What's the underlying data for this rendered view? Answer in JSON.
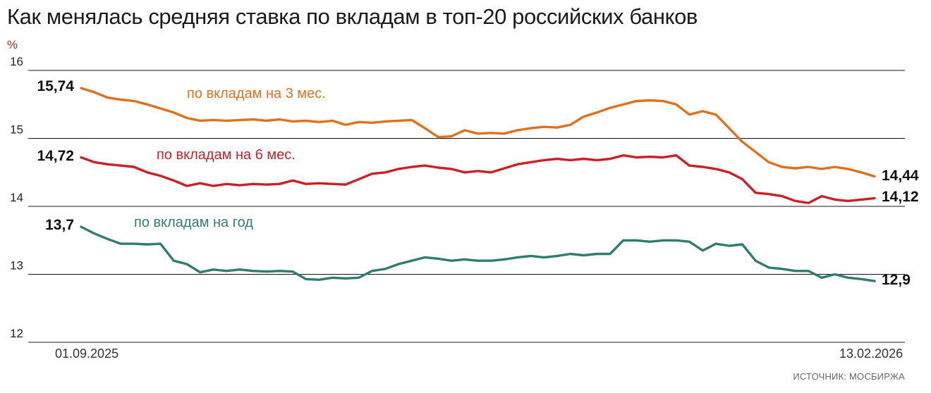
{
  "title": "Как менялась средняя ставка по вкладам в топ-20 российских банков",
  "unit_label": "%",
  "source": "ИСТОЧНИК: МОСБИРЖА",
  "x_axis": {
    "start_label": "01.09.2025",
    "end_label": "13.02.2026"
  },
  "colors": {
    "grid": "#141414",
    "text": "#1a1a1a",
    "unit_label": "#9e2b2b",
    "muted": "#666666"
  },
  "chart_data": {
    "type": "line",
    "title": "Как менялась средняя ставка по вкладам в топ-20 российских банков",
    "ylabel": "%",
    "ylim": [
      12,
      16
    ],
    "yticks": [
      16,
      15,
      14,
      13,
      12
    ],
    "grid": true,
    "legend_position": "inline",
    "x_range": [
      "01.09.2025",
      "13.02.2026"
    ],
    "series": [
      {
        "name": "по вкладам на 3 мес.",
        "color": "#e0711c",
        "start_value_label": "15,74",
        "end_value_label": "14,44",
        "start_value": 15.74,
        "end_value": 14.44,
        "values": [
          15.74,
          15.68,
          15.6,
          15.57,
          15.55,
          15.5,
          15.44,
          15.38,
          15.3,
          15.26,
          15.27,
          15.26,
          15.27,
          15.28,
          15.26,
          15.28,
          15.25,
          15.26,
          15.24,
          15.26,
          15.2,
          15.24,
          15.23,
          15.25,
          15.26,
          15.27,
          15.15,
          15.02,
          15.03,
          15.12,
          15.07,
          15.08,
          15.07,
          15.12,
          15.15,
          15.17,
          15.16,
          15.2,
          15.32,
          15.38,
          15.45,
          15.5,
          15.55,
          15.56,
          15.55,
          15.5,
          15.35,
          15.4,
          15.35,
          15.15,
          14.95,
          14.8,
          14.65,
          14.58,
          14.56,
          14.58,
          14.55,
          14.58,
          14.55,
          14.5,
          14.44
        ]
      },
      {
        "name": "по вкладам на 6 мес.",
        "color": "#cb2026",
        "start_value_label": "14,72",
        "end_value_label": "14,12",
        "start_value": 14.72,
        "end_value": 14.12,
        "values": [
          14.72,
          14.65,
          14.62,
          14.6,
          14.58,
          14.5,
          14.45,
          14.38,
          14.3,
          14.34,
          14.3,
          14.33,
          14.31,
          14.33,
          14.32,
          14.33,
          14.38,
          14.33,
          14.34,
          14.33,
          14.32,
          14.4,
          14.48,
          14.5,
          14.55,
          14.58,
          14.6,
          14.57,
          14.55,
          14.5,
          14.52,
          14.5,
          14.56,
          14.62,
          14.65,
          14.68,
          14.7,
          14.68,
          14.7,
          14.68,
          14.7,
          14.75,
          14.72,
          14.73,
          14.72,
          14.75,
          14.6,
          14.58,
          14.55,
          14.5,
          14.4,
          14.2,
          14.18,
          14.15,
          14.08,
          14.05,
          14.15,
          14.1,
          14.08,
          14.1,
          14.12
        ]
      },
      {
        "name": "по вкладам на год",
        "color": "#2f7d6e",
        "start_value_label": "13,7",
        "end_value_label": "12,9",
        "start_value": 13.7,
        "end_value": 12.9,
        "values": [
          13.7,
          13.6,
          13.52,
          13.45,
          13.45,
          13.44,
          13.45,
          13.2,
          13.15,
          13.03,
          13.07,
          13.05,
          13.07,
          13.05,
          13.04,
          13.05,
          13.04,
          12.93,
          12.92,
          12.95,
          12.94,
          12.95,
          13.05,
          13.08,
          13.15,
          13.2,
          13.25,
          13.23,
          13.2,
          13.22,
          13.2,
          13.2,
          13.22,
          13.25,
          13.27,
          13.25,
          13.27,
          13.3,
          13.28,
          13.3,
          13.3,
          13.5,
          13.5,
          13.48,
          13.5,
          13.5,
          13.48,
          13.35,
          13.45,
          13.42,
          13.44,
          13.2,
          13.1,
          13.08,
          13.05,
          13.05,
          12.95,
          13.0,
          12.95,
          12.93,
          12.9
        ]
      }
    ]
  }
}
